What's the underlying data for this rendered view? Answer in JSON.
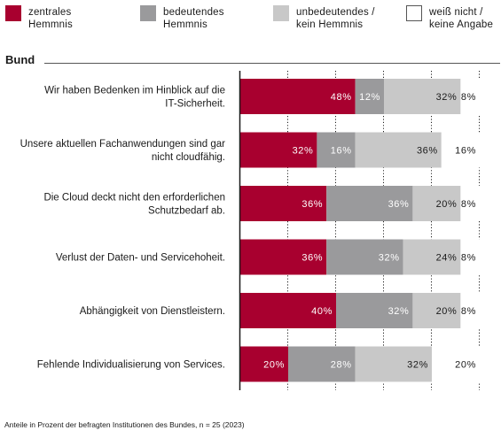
{
  "chart_data": {
    "type": "bar",
    "orientation": "horizontal",
    "stacked": true,
    "group_title": "Bund",
    "categories": [
      [
        "Wir haben Bedenken im Hinblick auf die",
        "IT-Sicherheit."
      ],
      [
        "Unsere aktuellen Fachanwendungen sind gar",
        "nicht cloudfähig."
      ],
      [
        "Die Cloud deckt nicht den erforderlichen",
        "Schutzbedarf ab."
      ],
      [
        "Verlust der Daten- und Servicehoheit."
      ],
      [
        "Abhängigkeit von Dienstleistern."
      ],
      [
        "Fehlende Individualisierung von Services."
      ]
    ],
    "series": [
      {
        "name": "zentrales\nHemmnis",
        "color": "#a8002f",
        "label_color": "#ffffff",
        "values": [
          48,
          32,
          36,
          36,
          40,
          20
        ]
      },
      {
        "name": "bedeutendes\nHemmnis",
        "color": "#9a9a9c",
        "label_color": "#ffffff",
        "values": [
          12,
          16,
          36,
          32,
          32,
          28
        ]
      },
      {
        "name": "unbedeutendes /\nkein Hemmnis",
        "color": "#c8c8c8",
        "label_color": "#1a1a1a",
        "values": [
          32,
          36,
          20,
          24,
          20,
          32
        ]
      },
      {
        "name": "weiß nicht /\nkeine Angabe",
        "color": "#ffffff",
        "label_color": "#1a1a1a",
        "values": [
          8,
          16,
          8,
          8,
          8,
          20
        ]
      }
    ],
    "value_suffix": "%",
    "xlim": [
      0,
      100
    ],
    "grid": true,
    "legend_position": "top"
  },
  "footnote": "Anteile in Prozent der befragten Institutionen des Bundes, n = 25 (2023)"
}
